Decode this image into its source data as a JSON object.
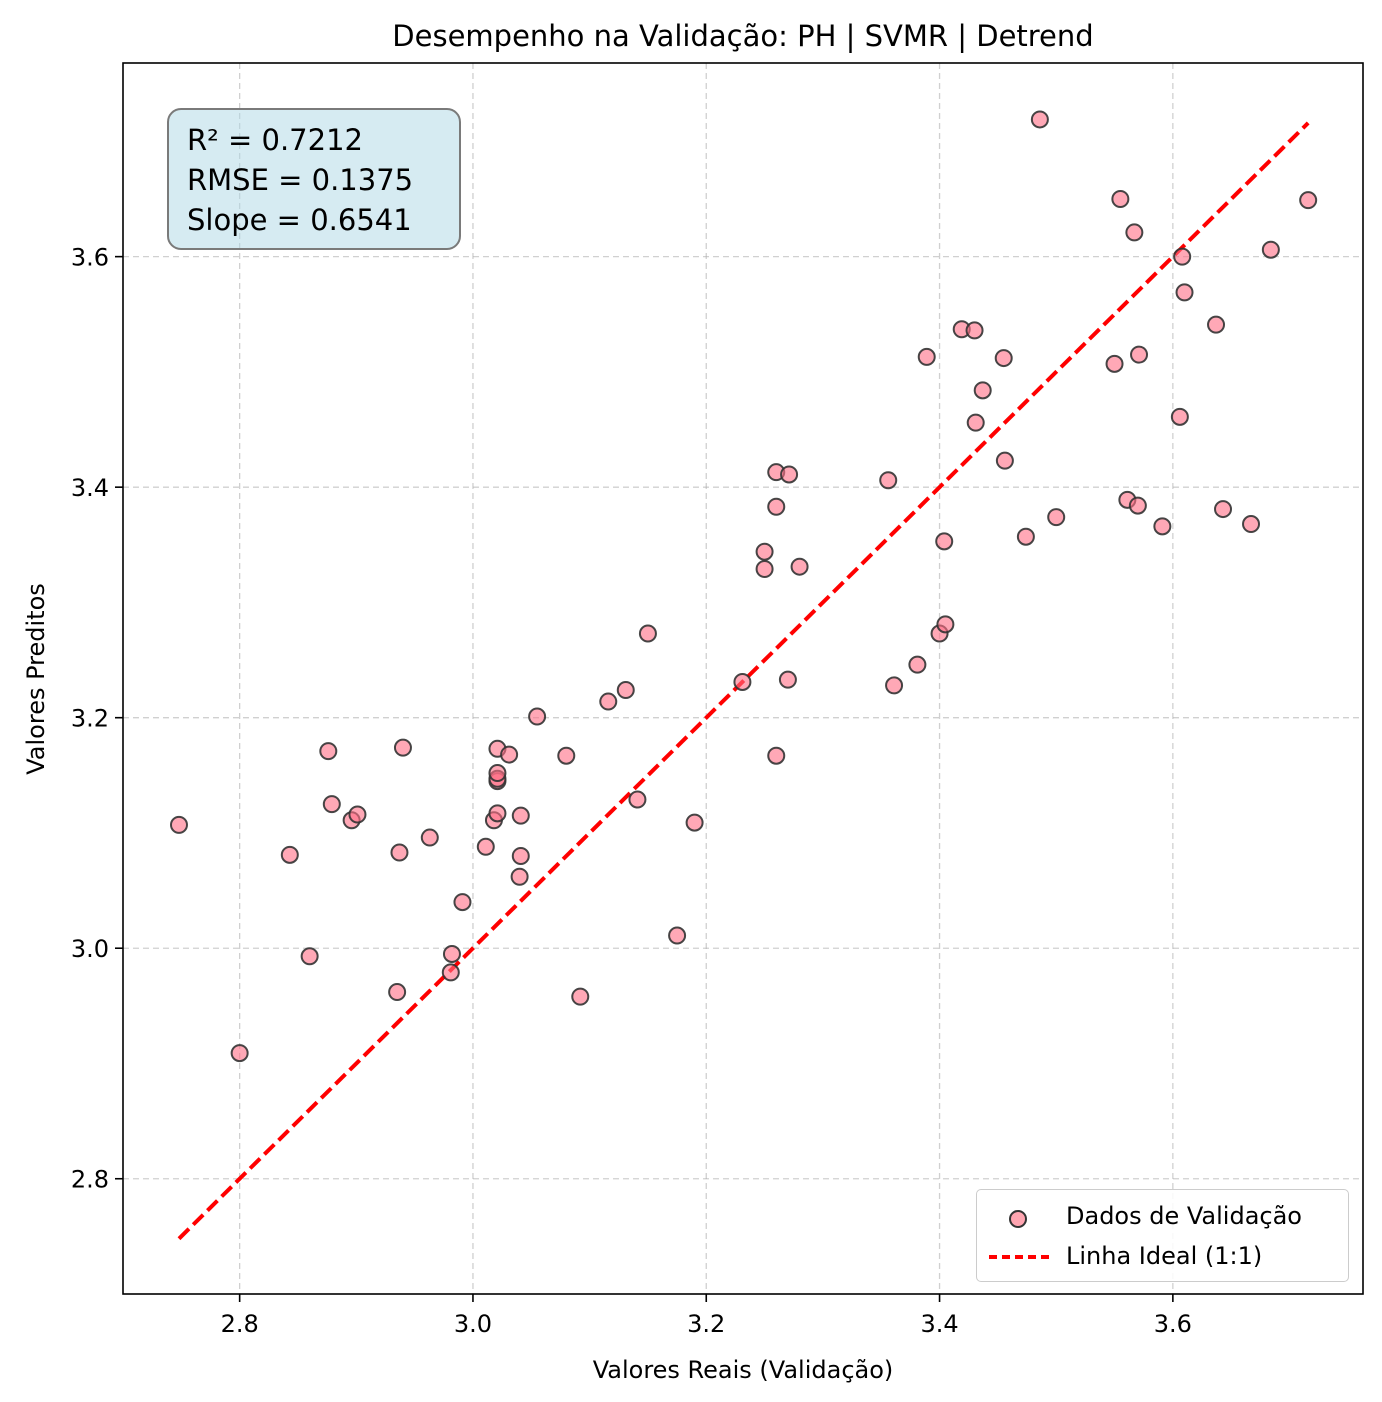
{
  "chart_data": {
    "type": "scatter",
    "title": "Desempenho na Validação: PH | SVMR | Detrend",
    "xlabel": "Valores Reais (Validação)",
    "ylabel": "Valores Preditos",
    "xlim": [
      2.7,
      3.763
    ],
    "ylim": [
      2.7,
      3.768
    ],
    "xticks": [
      "2.8",
      "3.0",
      "3.2",
      "3.4",
      "3.6"
    ],
    "yticks": [
      "2.8",
      "3.0",
      "3.2",
      "3.4",
      "3.6"
    ],
    "grid": true,
    "legend_position": "bottom-right",
    "colors": {
      "points": "#ff6e86",
      "point_edge": "#333333",
      "ideal_line": "#ff0000"
    },
    "stats": [
      "R² = 0.7212",
      "RMSE = 0.1375",
      "Slope = 0.6541"
    ],
    "series": [
      {
        "name": "Dados de Validação",
        "kind": "scatter",
        "points": [
          [
            2.748,
            3.107
          ],
          [
            2.8,
            2.909
          ],
          [
            2.843,
            3.081
          ],
          [
            2.86,
            2.993
          ],
          [
            2.876,
            3.171
          ],
          [
            2.879,
            3.125
          ],
          [
            2.896,
            3.111
          ],
          [
            2.901,
            3.116
          ],
          [
            2.935,
            2.962
          ],
          [
            2.937,
            3.083
          ],
          [
            2.94,
            3.174
          ],
          [
            2.963,
            3.096
          ],
          [
            2.981,
            2.979
          ],
          [
            2.982,
            2.995
          ],
          [
            2.991,
            3.04
          ],
          [
            3.011,
            3.088
          ],
          [
            3.018,
            3.111
          ],
          [
            3.021,
            3.117
          ],
          [
            3.021,
            3.145
          ],
          [
            3.021,
            3.147
          ],
          [
            3.021,
            3.152
          ],
          [
            3.021,
            3.173
          ],
          [
            3.031,
            3.168
          ],
          [
            3.04,
            3.062
          ],
          [
            3.041,
            3.08
          ],
          [
            3.041,
            3.115
          ],
          [
            3.055,
            3.201
          ],
          [
            3.08,
            3.167
          ],
          [
            3.092,
            2.958
          ],
          [
            3.116,
            3.214
          ],
          [
            3.131,
            3.224
          ],
          [
            3.141,
            3.129
          ],
          [
            3.15,
            3.273
          ],
          [
            3.175,
            3.011
          ],
          [
            3.19,
            3.109
          ],
          [
            3.231,
            3.231
          ],
          [
            3.25,
            3.329
          ],
          [
            3.25,
            3.344
          ],
          [
            3.26,
            3.167
          ],
          [
            3.26,
            3.383
          ],
          [
            3.26,
            3.413
          ],
          [
            3.27,
            3.233
          ],
          [
            3.271,
            3.411
          ],
          [
            3.28,
            3.331
          ],
          [
            3.356,
            3.406
          ],
          [
            3.361,
            3.228
          ],
          [
            3.381,
            3.246
          ],
          [
            3.389,
            3.513
          ],
          [
            3.4,
            3.273
          ],
          [
            3.404,
            3.353
          ],
          [
            3.405,
            3.281
          ],
          [
            3.419,
            3.537
          ],
          [
            3.43,
            3.536
          ],
          [
            3.431,
            3.456
          ],
          [
            3.437,
            3.484
          ],
          [
            3.455,
            3.512
          ],
          [
            3.456,
            3.423
          ],
          [
            3.474,
            3.357
          ],
          [
            3.486,
            3.719
          ],
          [
            3.5,
            3.374
          ],
          [
            3.55,
            3.507
          ],
          [
            3.555,
            3.65
          ],
          [
            3.561,
            3.389
          ],
          [
            3.567,
            3.621
          ],
          [
            3.57,
            3.384
          ],
          [
            3.571,
            3.515
          ],
          [
            3.591,
            3.366
          ],
          [
            3.606,
            3.461
          ],
          [
            3.608,
            3.6
          ],
          [
            3.61,
            3.569
          ],
          [
            3.637,
            3.541
          ],
          [
            3.643,
            3.381
          ],
          [
            3.667,
            3.368
          ],
          [
            3.684,
            3.606
          ],
          [
            3.716,
            3.649
          ]
        ]
      },
      {
        "name": "Linha Ideal (1:1)",
        "kind": "line",
        "points": [
          [
            2.748,
            2.748
          ],
          [
            3.716,
            3.716
          ]
        ]
      }
    ]
  }
}
